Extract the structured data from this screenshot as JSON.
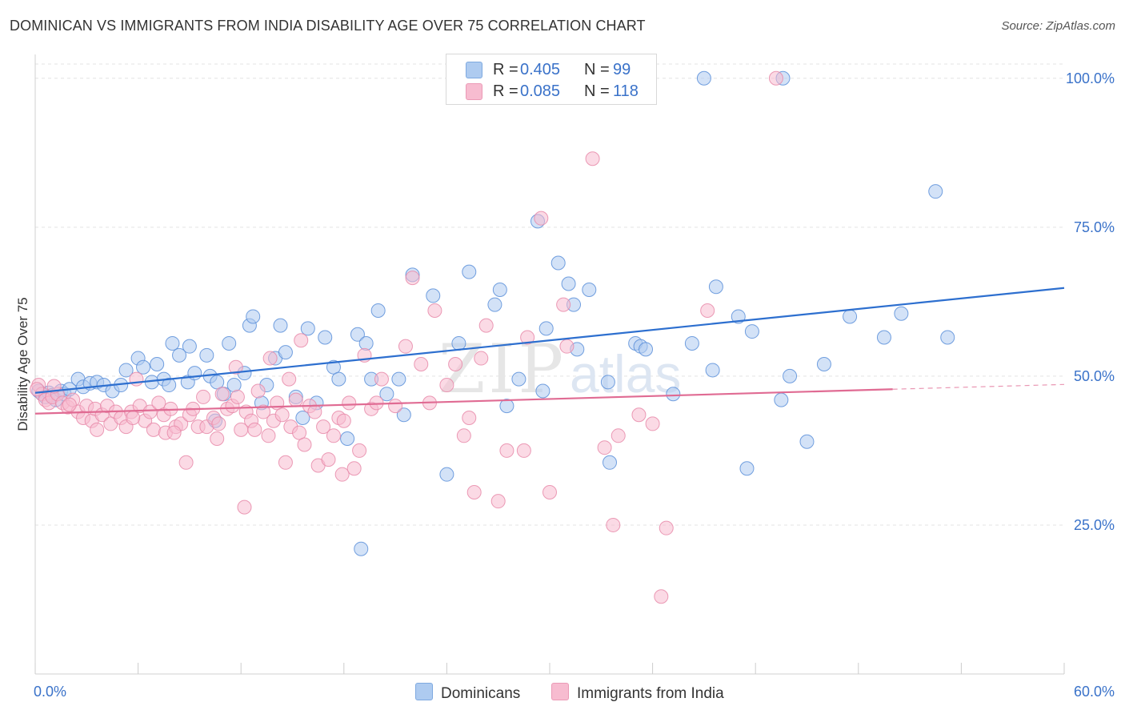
{
  "header": {
    "title": "DOMINICAN VS IMMIGRANTS FROM INDIA DISABILITY AGE OVER 75 CORRELATION CHART",
    "source": "Source: ZipAtlas.com"
  },
  "watermark": {
    "part1": "ZIP",
    "part2": "atlas"
  },
  "legend": {
    "rows": [
      {
        "r_label": "R =",
        "r_value": "0.405",
        "n_label": "N =",
        "n_value": "99",
        "color": "#aecbf0"
      },
      {
        "r_label": "R =",
        "r_value": "0.085",
        "n_label": "N =",
        "n_value": "118",
        "color": "#f7bcd0"
      }
    ]
  },
  "bottom_legend": {
    "items": [
      {
        "label": "Dominicans",
        "color": "#aecbf0"
      },
      {
        "label": "Immigrants from India",
        "color": "#f7bcd0"
      }
    ]
  },
  "chart_data": {
    "type": "scatter",
    "title": "DOMINICAN VS IMMIGRANTS FROM INDIA DISABILITY AGE OVER 75 CORRELATION CHART",
    "xlabel": "",
    "ylabel": "Disability Age Over 75",
    "xlim": [
      0,
      60
    ],
    "ylim": [
      0,
      104
    ],
    "x_tick_labels": [
      "0.0%",
      "60.0%"
    ],
    "y_ticks": [
      25,
      50,
      75,
      100
    ],
    "y_tick_labels": [
      "25.0%",
      "50.0%",
      "75.0%",
      "100.0%"
    ],
    "grid": true,
    "legend_position": "top-center",
    "series": [
      {
        "name": "Dominicans",
        "color": "#5b8fd9",
        "fill": "#aecbf0",
        "trend": {
          "x": [
            0,
            60
          ],
          "y": [
            47.2,
            64.8
          ],
          "color": "#2d6fcf"
        },
        "points": [
          [
            0.2,
            47.5
          ],
          [
            0.4,
            47.0
          ],
          [
            0.6,
            46.5
          ],
          [
            0.8,
            47.2
          ],
          [
            1.0,
            46.8
          ],
          [
            1.2,
            46.0
          ],
          [
            1.5,
            47.5
          ],
          [
            1.7,
            47.0
          ],
          [
            2.0,
            47.8
          ],
          [
            2.5,
            49.5
          ],
          [
            2.8,
            48.2
          ],
          [
            3.2,
            48.8
          ],
          [
            3.6,
            49.0
          ],
          [
            4.0,
            48.5
          ],
          [
            4.5,
            47.5
          ],
          [
            5.0,
            48.5
          ],
          [
            5.3,
            51.0
          ],
          [
            6.0,
            53.0
          ],
          [
            6.3,
            51.5
          ],
          [
            6.8,
            49.0
          ],
          [
            7.1,
            52.0
          ],
          [
            7.5,
            49.5
          ],
          [
            7.8,
            48.5
          ],
          [
            8.0,
            55.5
          ],
          [
            8.4,
            53.5
          ],
          [
            8.9,
            49.0
          ],
          [
            9.0,
            55.0
          ],
          [
            9.3,
            50.5
          ],
          [
            10.0,
            53.5
          ],
          [
            10.2,
            50.0
          ],
          [
            10.6,
            49.0
          ],
          [
            11.0,
            47.0
          ],
          [
            11.3,
            55.5
          ],
          [
            11.6,
            48.5
          ],
          [
            12.2,
            50.5
          ],
          [
            12.5,
            58.5
          ],
          [
            12.7,
            60.0
          ],
          [
            13.5,
            48.5
          ],
          [
            13.2,
            45.5
          ],
          [
            14.0,
            53.0
          ],
          [
            14.3,
            58.5
          ],
          [
            14.6,
            54.0
          ],
          [
            15.2,
            46.5
          ],
          [
            15.6,
            43.0
          ],
          [
            15.9,
            58.0
          ],
          [
            16.4,
            45.5
          ],
          [
            16.9,
            56.5
          ],
          [
            17.4,
            51.5
          ],
          [
            17.7,
            49.5
          ],
          [
            18.2,
            39.5
          ],
          [
            18.8,
            57.0
          ],
          [
            19.3,
            55.5
          ],
          [
            19.6,
            49.5
          ],
          [
            20.0,
            61.0
          ],
          [
            20.5,
            47.0
          ],
          [
            21.2,
            49.5
          ],
          [
            21.5,
            43.5
          ],
          [
            22.0,
            67.0
          ],
          [
            23.2,
            63.5
          ],
          [
            24.0,
            33.5
          ],
          [
            24.7,
            55.5
          ],
          [
            25.3,
            67.5
          ],
          [
            26.8,
            62.0
          ],
          [
            27.1,
            64.5
          ],
          [
            27.5,
            45.0
          ],
          [
            28.2,
            49.5
          ],
          [
            29.3,
            76.0
          ],
          [
            29.8,
            58.0
          ],
          [
            29.6,
            47.5
          ],
          [
            30.5,
            69.0
          ],
          [
            31.1,
            65.5
          ],
          [
            31.4,
            62.0
          ],
          [
            31.6,
            54.5
          ],
          [
            32.3,
            64.5
          ],
          [
            33.5,
            35.5
          ],
          [
            33.4,
            49.0
          ],
          [
            35.0,
            55.5
          ],
          [
            35.3,
            55.0
          ],
          [
            35.6,
            54.5
          ],
          [
            37.2,
            47.0
          ],
          [
            38.3,
            55.5
          ],
          [
            39.5,
            51.0
          ],
          [
            39.7,
            65.0
          ],
          [
            41.5,
            34.5
          ],
          [
            41.0,
            60.0
          ],
          [
            41.8,
            57.5
          ],
          [
            43.5,
            46.0
          ],
          [
            44.0,
            50.0
          ],
          [
            46.0,
            52.0
          ],
          [
            47.5,
            60.0
          ],
          [
            49.5,
            56.5
          ],
          [
            50.5,
            60.5
          ],
          [
            52.5,
            81.0
          ],
          [
            53.2,
            56.5
          ],
          [
            39.0,
            100.0
          ],
          [
            43.6,
            100.0
          ],
          [
            19.0,
            21.0
          ],
          [
            45.0,
            39.0
          ],
          [
            10.5,
            42.5
          ]
        ]
      },
      {
        "name": "Immigrants from India",
        "color": "#e78aa9",
        "fill": "#f7bcd0",
        "trend": {
          "x": [
            0,
            50
          ],
          "y": [
            43.7,
            47.8
          ],
          "color": "#e06b93",
          "extrapolate_to": [
            60,
            48.6
          ]
        },
        "points": [
          [
            0.2,
            48.5
          ],
          [
            0.4,
            47.0
          ],
          [
            0.6,
            46.0
          ],
          [
            0.8,
            45.5
          ],
          [
            1.0,
            46.5
          ],
          [
            1.3,
            47.0
          ],
          [
            1.6,
            45.5
          ],
          [
            1.9,
            44.8
          ],
          [
            2.2,
            46.0
          ],
          [
            2.5,
            44.0
          ],
          [
            2.8,
            43.0
          ],
          [
            3.0,
            45.0
          ],
          [
            3.3,
            42.5
          ],
          [
            3.5,
            44.5
          ],
          [
            3.6,
            41.0
          ],
          [
            3.9,
            43.5
          ],
          [
            4.2,
            45.0
          ],
          [
            4.4,
            42.0
          ],
          [
            4.7,
            44.0
          ],
          [
            5.0,
            43.0
          ],
          [
            5.3,
            41.5
          ],
          [
            5.6,
            44.0
          ],
          [
            5.9,
            49.5
          ],
          [
            6.1,
            45.0
          ],
          [
            6.4,
            42.5
          ],
          [
            6.7,
            44.0
          ],
          [
            6.9,
            41.0
          ],
          [
            7.2,
            45.5
          ],
          [
            7.5,
            43.5
          ],
          [
            7.6,
            40.5
          ],
          [
            7.9,
            44.5
          ],
          [
            8.2,
            41.5
          ],
          [
            8.5,
            42.0
          ],
          [
            8.8,
            35.5
          ],
          [
            9.0,
            43.5
          ],
          [
            9.2,
            44.5
          ],
          [
            9.5,
            41.5
          ],
          [
            9.8,
            46.5
          ],
          [
            10.0,
            41.5
          ],
          [
            10.4,
            43.0
          ],
          [
            10.6,
            39.5
          ],
          [
            10.9,
            47.0
          ],
          [
            11.2,
            44.5
          ],
          [
            11.5,
            45.0
          ],
          [
            11.8,
            46.5
          ],
          [
            12.0,
            41.0
          ],
          [
            12.3,
            44.0
          ],
          [
            12.6,
            42.5
          ],
          [
            12.8,
            41.0
          ],
          [
            13.0,
            47.5
          ],
          [
            13.3,
            44.0
          ],
          [
            13.6,
            40.0
          ],
          [
            13.9,
            42.5
          ],
          [
            14.1,
            45.5
          ],
          [
            14.4,
            43.5
          ],
          [
            14.6,
            35.5
          ],
          [
            14.9,
            41.5
          ],
          [
            15.2,
            46.0
          ],
          [
            15.4,
            40.5
          ],
          [
            15.7,
            38.5
          ],
          [
            16.0,
            45.0
          ],
          [
            16.3,
            44.0
          ],
          [
            16.5,
            35.0
          ],
          [
            16.8,
            41.5
          ],
          [
            17.1,
            36.0
          ],
          [
            17.4,
            40.0
          ],
          [
            17.7,
            43.0
          ],
          [
            18.0,
            42.5
          ],
          [
            18.3,
            45.5
          ],
          [
            18.6,
            34.5
          ],
          [
            18.9,
            37.5
          ],
          [
            19.2,
            53.5
          ],
          [
            19.6,
            44.5
          ],
          [
            19.9,
            45.5
          ],
          [
            21.0,
            45.0
          ],
          [
            22.0,
            66.5
          ],
          [
            22.5,
            52.0
          ],
          [
            23.0,
            45.5
          ],
          [
            24.0,
            48.5
          ],
          [
            24.5,
            52.0
          ],
          [
            25.0,
            40.0
          ],
          [
            25.3,
            43.0
          ],
          [
            25.6,
            30.5
          ],
          [
            26.0,
            53.0
          ],
          [
            27.0,
            29.0
          ],
          [
            27.5,
            37.5
          ],
          [
            28.5,
            37.5
          ],
          [
            29.5,
            76.5
          ],
          [
            30.0,
            30.5
          ],
          [
            31.0,
            55.0
          ],
          [
            32.5,
            86.5
          ],
          [
            33.2,
            38.0
          ],
          [
            33.7,
            25.0
          ],
          [
            34.0,
            40.0
          ],
          [
            35.2,
            43.5
          ],
          [
            36.0,
            42.0
          ],
          [
            36.5,
            13.0
          ],
          [
            36.8,
            24.5
          ],
          [
            39.2,
            61.0
          ],
          [
            43.2,
            100.0
          ],
          [
            0.1,
            47.8
          ],
          [
            1.1,
            48.3
          ],
          [
            2.0,
            45.2
          ],
          [
            5.7,
            43.0
          ],
          [
            8.1,
            40.5
          ],
          [
            10.7,
            42.0
          ],
          [
            11.7,
            51.5
          ],
          [
            13.7,
            53.0
          ],
          [
            14.8,
            49.5
          ],
          [
            15.5,
            56.0
          ],
          [
            17.9,
            33.5
          ],
          [
            20.2,
            49.5
          ],
          [
            21.6,
            55.0
          ],
          [
            23.3,
            61.0
          ],
          [
            26.3,
            58.5
          ],
          [
            28.7,
            56.5
          ],
          [
            30.8,
            62.0
          ],
          [
            12.2,
            28.0
          ]
        ]
      }
    ]
  }
}
